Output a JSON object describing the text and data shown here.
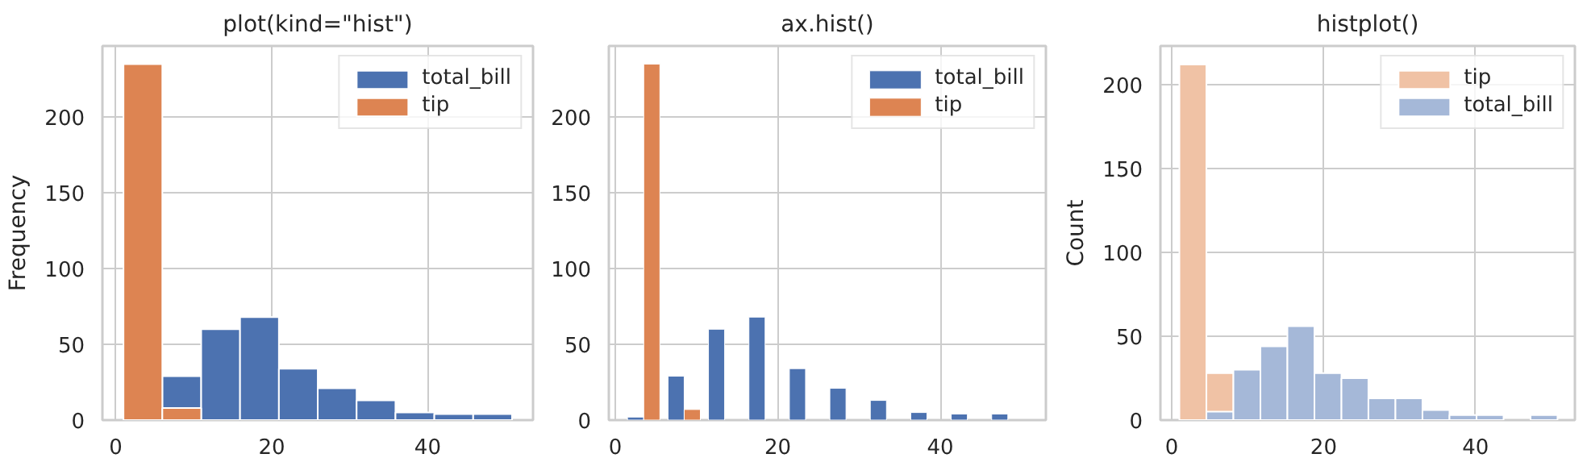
{
  "chart_data": [
    {
      "type": "histogram",
      "title": "plot(kind=\"hist\")",
      "ylabel": "Frequency",
      "bins": [
        1,
        5.981,
        10.962,
        15.943,
        20.924,
        25.905,
        30.886,
        35.867,
        40.848,
        45.829,
        50.81
      ],
      "series": [
        {
          "name": "total_bill",
          "color": "#4c72b0",
          "values": [
            null,
            29,
            60,
            68,
            34,
            21,
            13,
            5,
            4,
            4
          ]
        },
        {
          "name": "tip",
          "color": "#dd8452",
          "values": [
            235,
            8,
            0,
            0,
            0,
            0,
            0,
            0,
            0,
            0
          ]
        }
      ],
      "xlim": [
        -1.7,
        53.5
      ],
      "xticks": [
        0,
        20,
        40
      ],
      "ylim": [
        0,
        247
      ],
      "yticks": [
        0,
        50,
        100,
        150,
        200
      ],
      "grid": true,
      "legend": "top right"
    },
    {
      "type": "bar",
      "title": "ax.hist()",
      "series": [
        {
          "name": "total_bill",
          "color": "#4c72b0",
          "x": [
            2.49,
            7.48,
            12.46,
            17.44,
            22.42,
            27.4,
            32.38,
            37.36,
            42.34,
            47.32
          ],
          "values": [
            2,
            29,
            60,
            68,
            34,
            21,
            13,
            5,
            4,
            4
          ]
        },
        {
          "name": "tip",
          "color": "#dd8452",
          "x": [
            4.49,
            9.47,
            14.45,
            19.43,
            24.41,
            29.39,
            34.37,
            39.35,
            44.33,
            49.31
          ],
          "values": [
            235,
            7,
            0,
            0,
            0,
            0,
            0,
            0,
            0,
            0
          ]
        }
      ],
      "xlim": [
        -0.8,
        53
      ],
      "xticks": [
        0,
        20,
        40
      ],
      "ylim": [
        0,
        247
      ],
      "yticks": [
        0,
        50,
        100,
        150,
        200
      ],
      "grid": true,
      "legend": "top right"
    },
    {
      "type": "histogram",
      "title": "histplot()",
      "ylabel": "Count",
      "bins": [
        1,
        4.558,
        8.116,
        11.674,
        15.23,
        18.79,
        22.35,
        25.9,
        29.46,
        33.02,
        36.58,
        40.14,
        43.7,
        47.26,
        50.81
      ],
      "series": [
        {
          "name": "tip",
          "color": "#f0c2a5",
          "values": [
            212,
            28,
            0,
            0,
            0,
            0,
            0,
            0,
            0,
            0,
            0,
            0,
            0,
            0
          ]
        },
        {
          "name": "total_bill",
          "color": "#a5b8d8",
          "values": [
            0,
            5,
            30,
            44,
            56,
            28,
            25,
            13,
            13,
            6,
            3,
            3,
            0,
            3
          ]
        }
      ],
      "xlim": [
        -1.5,
        53.1
      ],
      "xticks": [
        0,
        20,
        40
      ],
      "ylim": [
        0,
        223
      ],
      "yticks": [
        0,
        50,
        100,
        150,
        200
      ],
      "grid": true,
      "legend": "top right"
    }
  ]
}
